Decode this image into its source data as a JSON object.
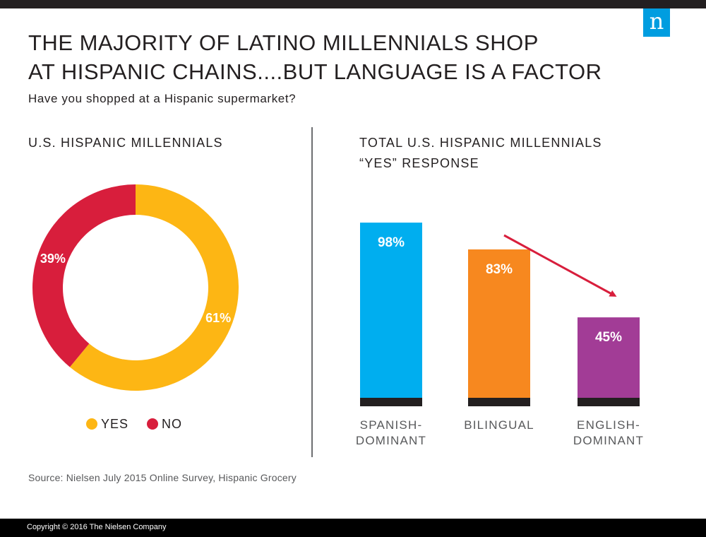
{
  "logo_letter": "n",
  "title_line1": "THE MAJORITY OF LATINO MILLENNIALS SHOP",
  "title_line2": "AT HISPANIC CHAINS....BUT LANGUAGE IS A FACTOR",
  "question": "Have you shopped at a Hispanic supermarket?",
  "source": "Source: Nielsen July 2015 Online Survey, Hispanic Grocery",
  "copyright": "Copyright © 2016 The Nielsen Company",
  "chart_data": [
    {
      "type": "pie",
      "title": "U.S. HISPANIC MILLENNIALS",
      "categories": [
        "YES",
        "NO"
      ],
      "values": [
        61,
        39
      ],
      "data_labels": [
        "61%",
        "39%"
      ],
      "colors": [
        "#fdb614",
        "#d81e3c"
      ],
      "legend": "bottom"
    },
    {
      "type": "bar",
      "title_line1": "TOTAL U.S. HISPANIC MILLENNIALS",
      "title_line2": "“YES” RESPONSE",
      "categories": [
        {
          "line1": "SPANISH-",
          "line2": "DOMINANT"
        },
        {
          "line1": "BILINGUAL",
          "line2": ""
        },
        {
          "line1": "ENGLISH-",
          "line2": "DOMINANT"
        }
      ],
      "values": [
        98,
        83,
        45
      ],
      "data_labels": [
        "98%",
        "83%",
        "45%"
      ],
      "colors": [
        "#00aeef",
        "#f7881f",
        "#a23c96"
      ],
      "ylim": [
        0,
        100
      ],
      "annotation_color": "#d81e3c"
    }
  ]
}
